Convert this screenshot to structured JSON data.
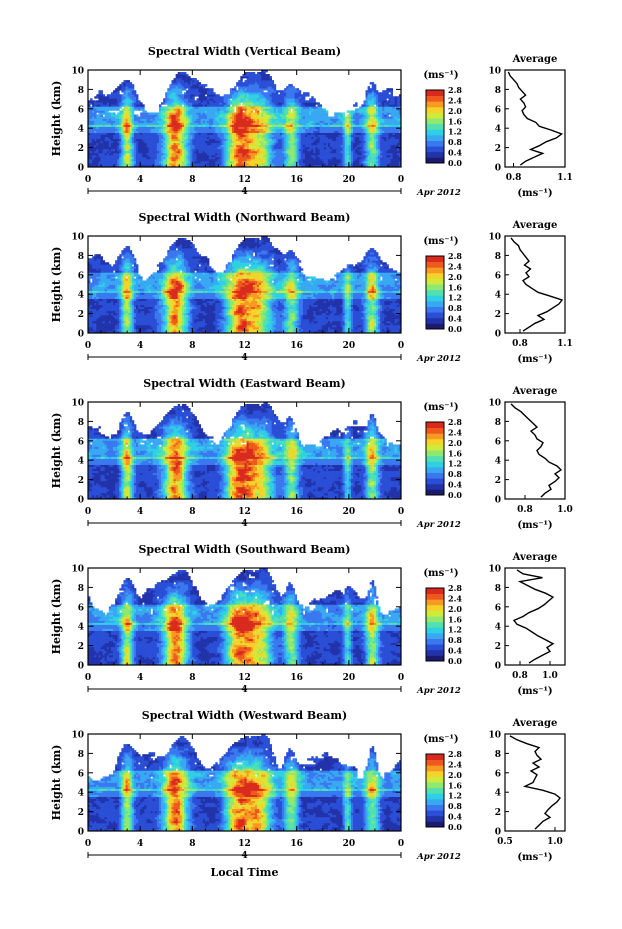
{
  "figure": {
    "time_axis_label": "Local Time",
    "date_label": "Apr 2012",
    "day_label": "4"
  },
  "chart_data": [
    {
      "type": "heatmap",
      "title": "Spectral Width (Vertical Beam)",
      "xlabel": "",
      "ylabel": "Height (km)",
      "xlim": [
        0,
        24
      ],
      "ylim": [
        0,
        10
      ],
      "xticks": [
        "0",
        "4",
        "8",
        "12",
        "16",
        "20",
        "0"
      ],
      "yticks": [
        "0",
        "2",
        "4",
        "6",
        "8",
        "10"
      ],
      "colorbar": {
        "unit": "(ms⁻¹)",
        "ticks": [
          "0.0",
          "0.4",
          "0.8",
          "1.2",
          "1.6",
          "2.0",
          "2.4",
          "2.8"
        ]
      },
      "average_profile": {
        "title": "Average",
        "xlabel": "(ms⁻¹)",
        "xlim": [
          0.75,
          1.1
        ],
        "xticks": [
          "0.8",
          "1.1"
        ],
        "yticks": [
          "0",
          "2",
          "4",
          "6",
          "8",
          "10"
        ],
        "height_km": [
          0.2,
          0.6,
          1.0,
          1.4,
          1.8,
          2.2,
          2.6,
          3.0,
          3.4,
          3.8,
          4.2,
          4.6,
          5.0,
          5.4,
          5.8,
          6.2,
          6.6,
          7.0,
          7.4,
          7.8,
          8.2,
          8.6,
          9.0,
          9.4,
          9.8
        ],
        "value": [
          0.84,
          0.87,
          0.92,
          0.97,
          0.9,
          0.95,
          0.99,
          1.05,
          1.08,
          1.02,
          0.95,
          0.93,
          0.88,
          0.86,
          0.85,
          0.87,
          0.86,
          0.84,
          0.87,
          0.85,
          0.83,
          0.82,
          0.8,
          0.78,
          0.77
        ]
      }
    },
    {
      "type": "heatmap",
      "title": "Spectral Width (Northward Beam)",
      "xlabel": "",
      "ylabel": "Height (km)",
      "xlim": [
        0,
        24
      ],
      "ylim": [
        0,
        10
      ],
      "xticks": [
        "0",
        "4",
        "8",
        "12",
        "16",
        "20",
        "0"
      ],
      "yticks": [
        "0",
        "2",
        "4",
        "6",
        "8",
        "10"
      ],
      "colorbar": {
        "unit": "(ms⁻¹)",
        "ticks": [
          "0.0",
          "0.4",
          "0.8",
          "1.2",
          "1.6",
          "2.0",
          "2.4",
          "2.8"
        ]
      },
      "average_profile": {
        "title": "Average",
        "xlabel": "(ms⁻¹)",
        "xlim": [
          0.7,
          1.1
        ],
        "xticks": [
          "0.8",
          "1.1"
        ],
        "yticks": [
          "0",
          "2",
          "4",
          "6",
          "8",
          "10"
        ],
        "height_km": [
          0.2,
          0.6,
          1.0,
          1.4,
          1.8,
          2.2,
          2.6,
          3.0,
          3.4,
          3.8,
          4.2,
          4.6,
          5.0,
          5.4,
          5.8,
          6.2,
          6.6,
          7.0,
          7.4,
          7.8,
          8.2,
          8.6,
          9.0,
          9.4,
          9.8
        ],
        "value": [
          0.82,
          0.86,
          0.9,
          0.96,
          0.92,
          0.98,
          1.02,
          1.06,
          1.08,
          1.0,
          0.92,
          0.88,
          0.84,
          0.82,
          0.86,
          0.84,
          0.87,
          0.83,
          0.86,
          0.84,
          0.82,
          0.8,
          0.79,
          0.76,
          0.74
        ]
      }
    },
    {
      "type": "heatmap",
      "title": "Spectral Width (Eastward Beam)",
      "xlabel": "",
      "ylabel": "Height (km)",
      "xlim": [
        0,
        24
      ],
      "ylim": [
        0,
        10
      ],
      "xticks": [
        "0",
        "4",
        "8",
        "12",
        "16",
        "20",
        "0"
      ],
      "yticks": [
        "0",
        "2",
        "4",
        "6",
        "8",
        "10"
      ],
      "colorbar": {
        "unit": "(ms⁻¹)",
        "ticks": [
          "0.0",
          "0.4",
          "0.8",
          "1.2",
          "1.6",
          "2.0",
          "2.4",
          "2.8"
        ]
      },
      "average_profile": {
        "title": "Average",
        "xlabel": "(ms⁻¹)",
        "xlim": [
          0.7,
          1.0
        ],
        "xticks": [
          "0.8",
          "1.0"
        ],
        "yticks": [
          "0",
          "2",
          "4",
          "6",
          "8",
          "10"
        ],
        "height_km": [
          0.2,
          0.6,
          1.0,
          1.4,
          1.8,
          2.2,
          2.6,
          3.0,
          3.4,
          3.8,
          4.2,
          4.6,
          5.0,
          5.4,
          5.8,
          6.2,
          6.6,
          7.0,
          7.4,
          7.8,
          8.2,
          8.6,
          9.0,
          9.4,
          9.8
        ],
        "value": [
          0.88,
          0.9,
          0.93,
          0.92,
          0.95,
          0.97,
          0.95,
          0.98,
          0.96,
          0.92,
          0.9,
          0.87,
          0.86,
          0.88,
          0.89,
          0.86,
          0.85,
          0.83,
          0.86,
          0.84,
          0.82,
          0.8,
          0.78,
          0.75,
          0.73
        ]
      }
    },
    {
      "type": "heatmap",
      "title": "Spectral Width (Southward Beam)",
      "xlabel": "",
      "ylabel": "Height (km)",
      "xlim": [
        0,
        24
      ],
      "ylim": [
        0,
        10
      ],
      "xticks": [
        "0",
        "4",
        "8",
        "12",
        "16",
        "20",
        "0"
      ],
      "yticks": [
        "0",
        "2",
        "4",
        "6",
        "8",
        "10"
      ],
      "colorbar": {
        "unit": "(ms⁻¹)",
        "ticks": [
          "0.0",
          "0.4",
          "0.8",
          "1.2",
          "1.6",
          "2.0",
          "2.4",
          "2.8"
        ]
      },
      "average_profile": {
        "title": "Average",
        "xlabel": "(ms⁻¹)",
        "xlim": [
          0.7,
          1.1
        ],
        "xticks": [
          "0.8",
          "1.0"
        ],
        "yticks": [
          "0",
          "2",
          "4",
          "6",
          "8",
          "10"
        ],
        "height_km": [
          0.2,
          0.6,
          1.0,
          1.4,
          1.8,
          2.2,
          2.6,
          3.0,
          3.4,
          3.8,
          4.2,
          4.6,
          5.0,
          5.4,
          5.8,
          6.2,
          6.6,
          7.0,
          7.4,
          7.8,
          8.2,
          8.6,
          9.0,
          9.4,
          9.8
        ],
        "value": [
          0.86,
          0.9,
          0.95,
          1.0,
          0.98,
          1.02,
          0.97,
          0.92,
          0.88,
          0.84,
          0.78,
          0.76,
          0.82,
          0.86,
          0.92,
          0.96,
          0.99,
          1.02,
          0.97,
          0.9,
          0.85,
          0.8,
          0.95,
          0.82,
          0.78
        ]
      }
    },
    {
      "type": "heatmap",
      "title": "Spectral Width (Westward Beam)",
      "xlabel": "Local Time",
      "ylabel": "Height (km)",
      "xlim": [
        0,
        24
      ],
      "ylim": [
        0,
        10
      ],
      "xticks": [
        "0",
        "4",
        "8",
        "12",
        "16",
        "20",
        "0"
      ],
      "yticks": [
        "0",
        "2",
        "4",
        "6",
        "8",
        "10"
      ],
      "colorbar": {
        "unit": "(ms⁻¹)",
        "ticks": [
          "0.0",
          "0.4",
          "0.8",
          "1.2",
          "1.6",
          "2.0",
          "2.4",
          "2.8"
        ]
      },
      "average_profile": {
        "title": "Average",
        "xlabel": "(ms⁻¹)",
        "xlim": [
          0.5,
          1.1
        ],
        "xticks": [
          "0.5",
          "1.0"
        ],
        "yticks": [
          "0",
          "2",
          "4",
          "6",
          "8",
          "10"
        ],
        "height_km": [
          0.2,
          0.6,
          1.0,
          1.4,
          1.8,
          2.2,
          2.6,
          3.0,
          3.4,
          3.8,
          4.2,
          4.6,
          5.0,
          5.4,
          5.8,
          6.2,
          6.6,
          7.0,
          7.4,
          7.8,
          8.2,
          8.6,
          9.0,
          9.4,
          9.8
        ],
        "value": [
          0.8,
          0.84,
          0.88,
          0.95,
          0.9,
          0.93,
          0.97,
          1.02,
          1.05,
          1.0,
          0.88,
          0.7,
          0.78,
          0.8,
          0.82,
          0.76,
          0.84,
          0.78,
          0.86,
          0.82,
          0.8,
          0.84,
          0.72,
          0.62,
          0.55
        ]
      }
    }
  ],
  "colormap": [
    "#1a1a6e",
    "#2233aa",
    "#2a4fd6",
    "#3a78f0",
    "#39a8f2",
    "#2fd0e6",
    "#52e0b0",
    "#8fe870",
    "#d0ea3c",
    "#f5d22a",
    "#f79a22",
    "#ee5a1e",
    "#d92a1e"
  ]
}
